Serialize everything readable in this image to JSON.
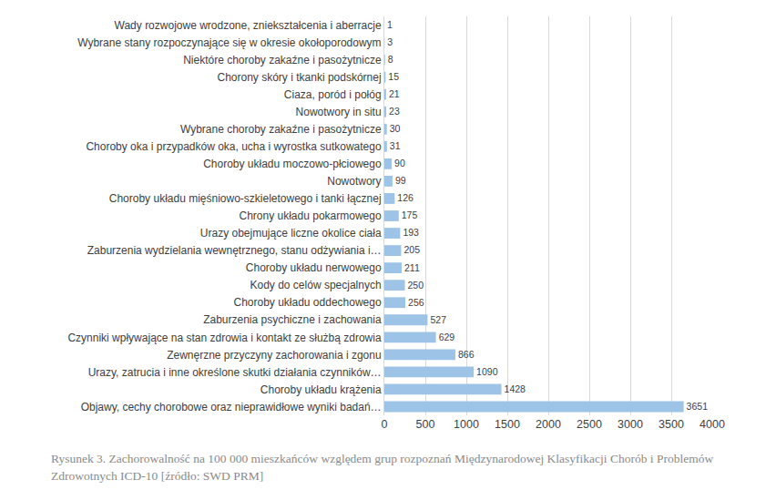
{
  "chart_data": {
    "type": "bar",
    "orientation": "horizontal",
    "caption": "Rysunek 3. Zachorowalność na 100 000 mieszkańców względem grup rozpoznań Międzynarodowej Klasyfikacji Chorób i Problemów Zdrowotnych ICD-10 [źródło: SWD PRM]",
    "categories": [
      "Wady rozwojowe wrodzone, zniekształcenia i aberracje",
      "Wybrane stany rozpoczynające się w okresie okołoporodowym",
      "Niektóre choroby zakaźne i pasożytnicze",
      "Chorony skóry i tkanki podskórnej",
      "Ciaza, poród i połóg",
      "Nowotwory in situ",
      "Wybrane choroby zakaźne i pasożytnicze",
      "Choroby oka i przypadków oka, ucha i wyrostka sutkowatego",
      "Choroby układu moczowo-płciowego",
      "Nowotwory",
      "Choroby układu mięśniowo-szkieletowego i tanki łącznej",
      "Chrony układu pokarmowego",
      "Urazy obejmujące liczne okolice ciała",
      "Zaburzenia wydzielania wewnętrznego, stanu odżywiania i…",
      "Choroby układu nerwowego",
      "Kody do celów specjalnych",
      "Choroby układu oddechowego",
      "Zaburzenia psychiczne i zachowania",
      "Czynniki wpływające na stan zdrowia i kontakt ze służbą zdrowia",
      "Zewnęrzne przyczyny zachorowania i zgonu",
      "Urazy, zatrucia i inne określone skutki działania czynników…",
      "Choroby układu krążenia",
      "Objawy, cechy chorobowe oraz nieprawidłowe wyniki badań…"
    ],
    "values": [
      1,
      3,
      8,
      15,
      21,
      23,
      30,
      31,
      90,
      99,
      126,
      175,
      193,
      205,
      211,
      250,
      256,
      527,
      629,
      866,
      1090,
      1428,
      3651
    ],
    "color": "#9dc3e6",
    "xlim": [
      0,
      4000
    ],
    "xticks": [
      0,
      500,
      1000,
      1500,
      2000,
      2500,
      3000,
      3500,
      4000
    ],
    "grid": true,
    "data_labels": true
  }
}
